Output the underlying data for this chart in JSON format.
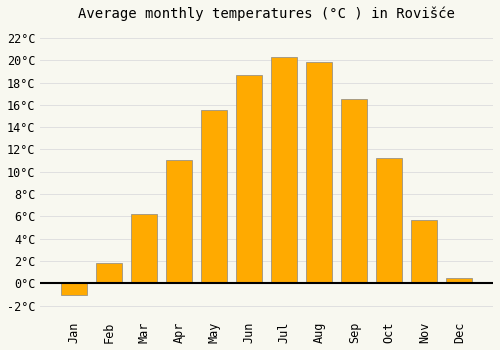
{
  "title": "Average monthly temperatures (°C ) in Rovišće",
  "months": [
    "Jan",
    "Feb",
    "Mar",
    "Apr",
    "May",
    "Jun",
    "Jul",
    "Aug",
    "Sep",
    "Oct",
    "Nov",
    "Dec"
  ],
  "temperatures": [
    -1.0,
    1.8,
    6.2,
    11.1,
    15.5,
    18.7,
    20.3,
    19.8,
    16.5,
    11.2,
    5.7,
    0.5
  ],
  "bar_color": "#FFAA00",
  "bar_edge_color": "#888888",
  "background_color": "#f8f8f0",
  "grid_color": "#e0e0e0",
  "title_fontsize": 10,
  "tick_fontsize": 8.5,
  "ylim": [
    -3,
    23
  ],
  "yticks": [
    -2,
    0,
    2,
    4,
    6,
    8,
    10,
    12,
    14,
    16,
    18,
    20,
    22
  ],
  "bar_width": 0.75
}
